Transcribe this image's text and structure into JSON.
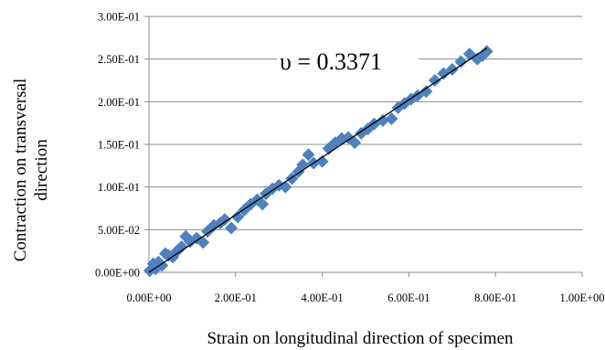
{
  "chart_data": {
    "type": "scatter",
    "title": "",
    "xlabel": "Strain on longitudinal direction of specimen",
    "ylabel_lines": [
      "Contraction on transversal",
      "direction"
    ],
    "annotation": "υ = 0.3371",
    "xlim": [
      0,
      1.0
    ],
    "ylim": [
      0,
      0.3
    ],
    "x_ticks": [
      0,
      0.2,
      0.4,
      0.6,
      0.8,
      1.0
    ],
    "x_tick_labels": [
      "0.00E+00",
      "2.00E-01",
      "4.00E-01",
      "6.00E-01",
      "8.00E-01",
      "1.00E+00"
    ],
    "y_ticks": [
      0,
      0.05,
      0.1,
      0.15,
      0.2,
      0.25,
      0.3
    ],
    "y_tick_labels": [
      "0.00E+00",
      "5.00E-02",
      "1.00E-01",
      "1.50E-01",
      "2.00E-01",
      "2.50E-01",
      "3.00E-01"
    ],
    "grid": "horizontal",
    "marker": "diamond",
    "series_color": "#4f81bd",
    "trendline_color": "#000000",
    "trendline": {
      "x": [
        0,
        0.78
      ],
      "y": [
        0,
        0.2629
      ]
    },
    "points": [
      [
        0.002,
        0.002
      ],
      [
        0.01,
        0.01
      ],
      [
        0.015,
        0.004
      ],
      [
        0.022,
        0.012
      ],
      [
        0.03,
        0.008
      ],
      [
        0.038,
        0.022
      ],
      [
        0.045,
        0.02
      ],
      [
        0.055,
        0.018
      ],
      [
        0.065,
        0.025
      ],
      [
        0.075,
        0.03
      ],
      [
        0.085,
        0.042
      ],
      [
        0.095,
        0.036
      ],
      [
        0.11,
        0.04
      ],
      [
        0.125,
        0.035
      ],
      [
        0.135,
        0.048
      ],
      [
        0.15,
        0.055
      ],
      [
        0.165,
        0.058
      ],
      [
        0.175,
        0.062
      ],
      [
        0.19,
        0.052
      ],
      [
        0.205,
        0.065
      ],
      [
        0.22,
        0.073
      ],
      [
        0.235,
        0.08
      ],
      [
        0.25,
        0.085
      ],
      [
        0.262,
        0.08
      ],
      [
        0.27,
        0.092
      ],
      [
        0.285,
        0.098
      ],
      [
        0.3,
        0.102
      ],
      [
        0.315,
        0.1
      ],
      [
        0.33,
        0.11
      ],
      [
        0.345,
        0.118
      ],
      [
        0.355,
        0.126
      ],
      [
        0.368,
        0.138
      ],
      [
        0.38,
        0.128
      ],
      [
        0.4,
        0.13
      ],
      [
        0.415,
        0.145
      ],
      [
        0.43,
        0.152
      ],
      [
        0.445,
        0.157
      ],
      [
        0.46,
        0.158
      ],
      [
        0.475,
        0.152
      ],
      [
        0.49,
        0.163
      ],
      [
        0.505,
        0.168
      ],
      [
        0.52,
        0.174
      ],
      [
        0.54,
        0.178
      ],
      [
        0.56,
        0.18
      ],
      [
        0.575,
        0.193
      ],
      [
        0.59,
        0.198
      ],
      [
        0.605,
        0.203
      ],
      [
        0.62,
        0.207
      ],
      [
        0.64,
        0.212
      ],
      [
        0.66,
        0.225
      ],
      [
        0.68,
        0.233
      ],
      [
        0.7,
        0.238
      ],
      [
        0.72,
        0.247
      ],
      [
        0.74,
        0.256
      ],
      [
        0.758,
        0.25
      ],
      [
        0.77,
        0.254
      ],
      [
        0.78,
        0.259
      ]
    ]
  }
}
